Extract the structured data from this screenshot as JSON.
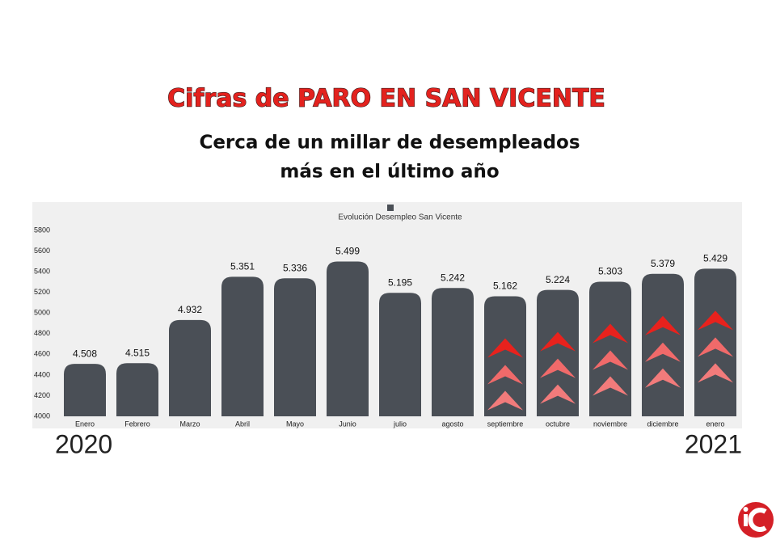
{
  "chart_data": {
    "type": "bar",
    "title": "Cifras de PARO EN SAN VICENTE",
    "subtitle": [
      "Cerca de un millar de desempleados",
      "más en el último año"
    ],
    "categories": [
      "Enero",
      "Febrero",
      "Marzo",
      "Abril",
      "Mayo",
      "Junio",
      "julio",
      "agosto",
      "septiembre",
      "octubre",
      "noviembre",
      "diciembre",
      "enero"
    ],
    "series": [
      {
        "name": "Evolución Desempleo San Vicente",
        "color": "#4a4f56",
        "values": [
          4508,
          4515,
          4932,
          5351,
          5336,
          5499,
          5195,
          5242,
          5162,
          5224,
          5303,
          5379,
          5429
        ],
        "value_labels": [
          "4.508",
          "4.515",
          "4.932",
          "5.351",
          "5.336",
          "5.499",
          "5.195",
          "5.242",
          "5.162",
          "5.224",
          "5.303",
          "5.379",
          "5.429"
        ]
      }
    ],
    "ylim": [
      4000,
      5800
    ],
    "yticks": [
      4000,
      4200,
      4400,
      4600,
      4800,
      5000,
      5200,
      5400,
      5600,
      5800
    ],
    "grid": false,
    "annotations": [
      "2020",
      "2021"
    ]
  }
}
